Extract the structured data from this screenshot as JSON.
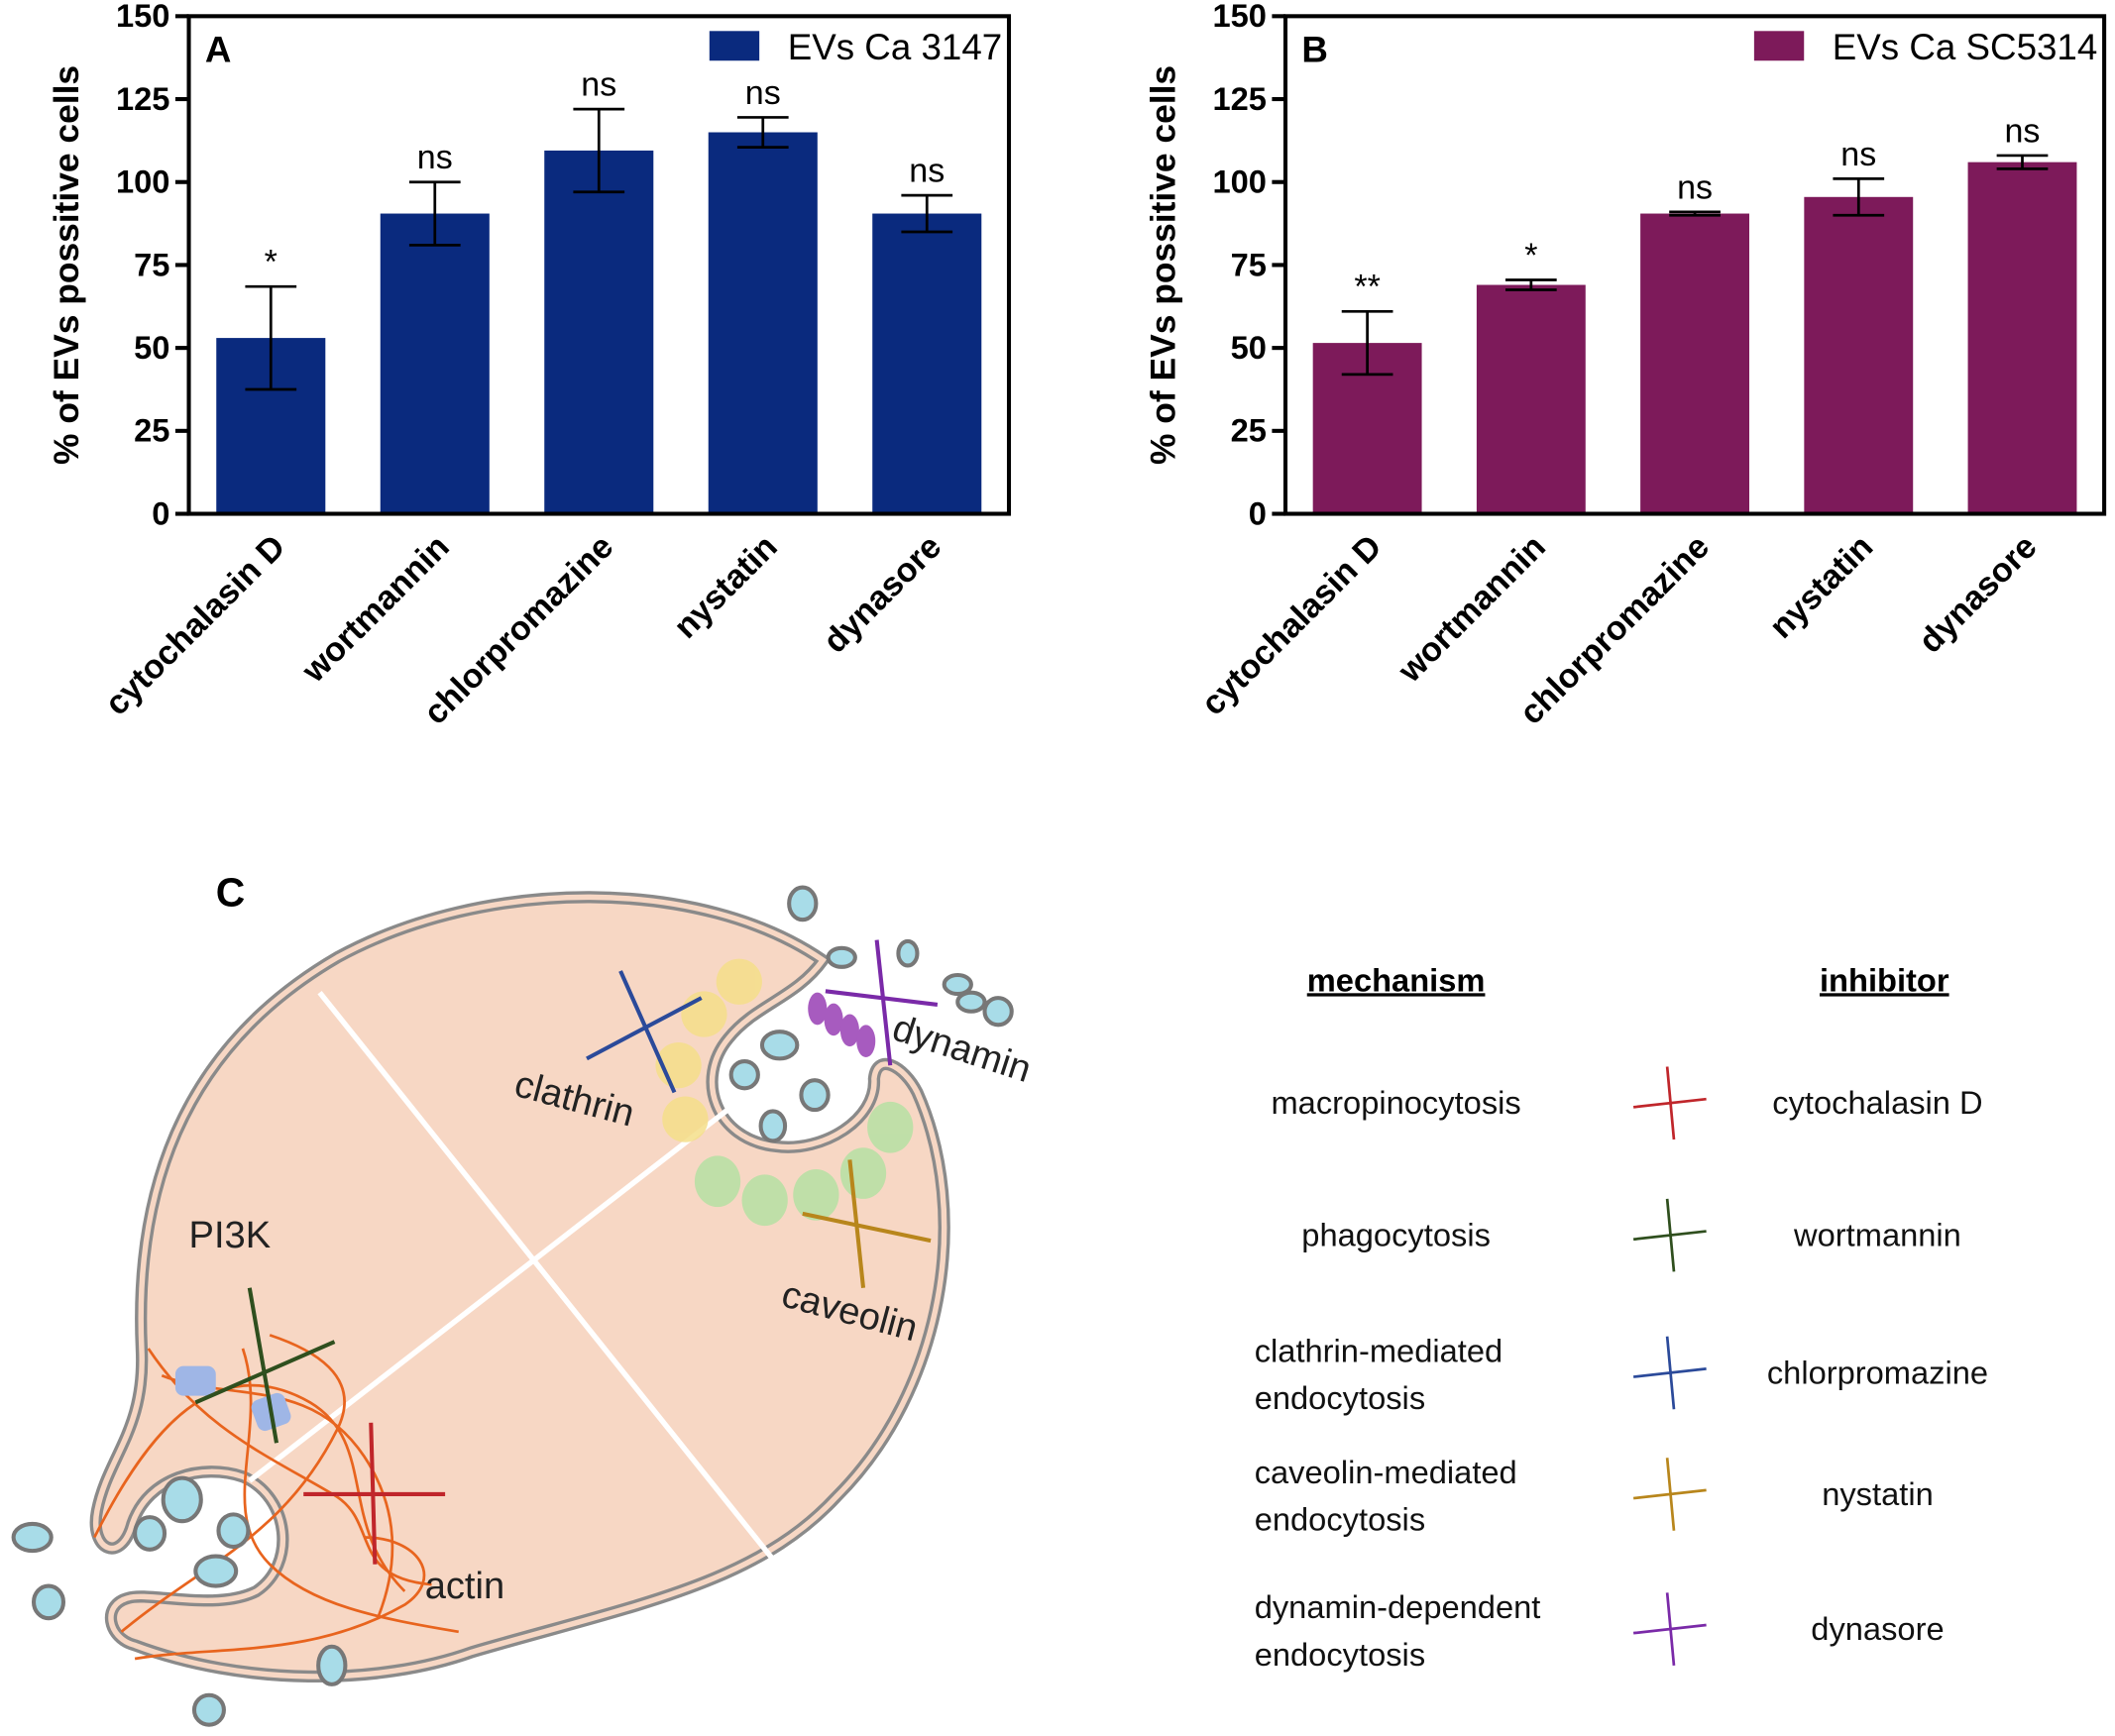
{
  "chart_data": [
    {
      "type": "bar",
      "panel": "A",
      "ylabel": "% of EVs possitive cells",
      "categories": [
        "cytochalasin D",
        "wortmannin",
        "chlorpromazine",
        "nystatin",
        "dynasore"
      ],
      "series": [
        {
          "name": "EVs Ca 3147",
          "color": "#0a2a7e",
          "values": [
            53,
            90.5,
            109.5,
            115,
            90.5
          ],
          "errors": [
            15.5,
            9.5,
            12.5,
            4.5,
            5.5
          ]
        }
      ],
      "annotations": [
        "*",
        "ns",
        "ns",
        "ns",
        "ns"
      ],
      "ylim": [
        0,
        150
      ],
      "yticks": [
        0,
        25,
        50,
        75,
        100,
        125,
        150
      ]
    },
    {
      "type": "bar",
      "panel": "B",
      "ylabel": "% of EVs possitive cells",
      "categories": [
        "cytochalasin D",
        "wortmannin",
        "chlorpromazine",
        "nystatin",
        "dynasore"
      ],
      "series": [
        {
          "name": "EVs Ca SC5314",
          "color": "#7d1a5a",
          "values": [
            51.5,
            69,
            90.5,
            95.5,
            106
          ],
          "errors": [
            9.5,
            1.5,
            0.5,
            5.5,
            2
          ]
        }
      ],
      "annotations": [
        "**",
        "*",
        "ns",
        "ns",
        "ns"
      ],
      "ylim": [
        0,
        150
      ],
      "yticks": [
        0,
        25,
        50,
        75,
        100,
        125,
        150
      ]
    }
  ],
  "diagram": {
    "panel": "C",
    "labels": [
      "clathrin",
      "dynamin",
      "PI3K",
      "caveolin",
      "actin"
    ],
    "legend": {
      "headers": [
        "mechanism",
        "inhibitor"
      ],
      "rows": [
        {
          "mechanism": [
            "macropinocytosis"
          ],
          "inhibitor": "cytochalasin D",
          "color": "#c0262b"
        },
        {
          "mechanism": [
            "phagocytosis"
          ],
          "inhibitor": "wortmannin",
          "color": "#2f4f1e"
        },
        {
          "mechanism": [
            "clathrin-mediated",
            "endocytosis"
          ],
          "inhibitor": "chlorpromazine",
          "color": "#2b4a9a"
        },
        {
          "mechanism": [
            "caveolin-mediated",
            "endocytosis"
          ],
          "inhibitor": "nystatin",
          "color": "#b8861c"
        },
        {
          "mechanism": [
            "dynamin-dependent",
            "endocytosis"
          ],
          "inhibitor": "dynasore",
          "color": "#7a2aa8"
        }
      ]
    }
  }
}
